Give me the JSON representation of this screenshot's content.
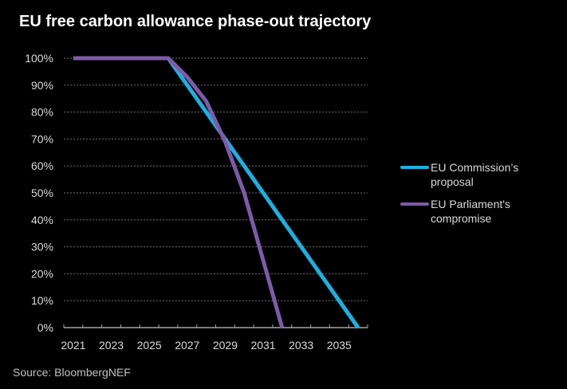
{
  "chart_data": {
    "type": "line",
    "title": "EU free carbon allowance phase-out trajectory",
    "source": "Source: BloombergNEF",
    "xlabel": "",
    "ylabel": "",
    "x": [
      2021,
      2022,
      2023,
      2024,
      2025,
      2026,
      2027,
      2028,
      2029,
      2030,
      2031,
      2032,
      2033,
      2034,
      2035,
      2036
    ],
    "x_tick_labels": [
      "2021",
      "2023",
      "2025",
      "2027",
      "2029",
      "2031",
      "2033",
      "2035"
    ],
    "y_tick_labels": [
      "0%",
      "10%",
      "20%",
      "30%",
      "40%",
      "50%",
      "60%",
      "70%",
      "80%",
      "90%",
      "100%"
    ],
    "ylim": [
      0,
      100
    ],
    "grid": true,
    "legend_position": "right",
    "series": [
      {
        "name": "EU Commission’s proposal",
        "color": "#1cb0e0",
        "values": [
          100,
          100,
          100,
          100,
          100,
          100,
          90,
          80,
          70,
          60,
          50,
          40,
          30,
          20,
          10,
          0
        ]
      },
      {
        "name": "EU Parliament's compromise",
        "color": "#7e5aa8",
        "values": [
          100,
          100,
          100,
          100,
          100,
          100,
          93,
          84,
          69,
          50,
          25,
          0,
          null,
          null,
          null,
          null
        ]
      }
    ]
  }
}
